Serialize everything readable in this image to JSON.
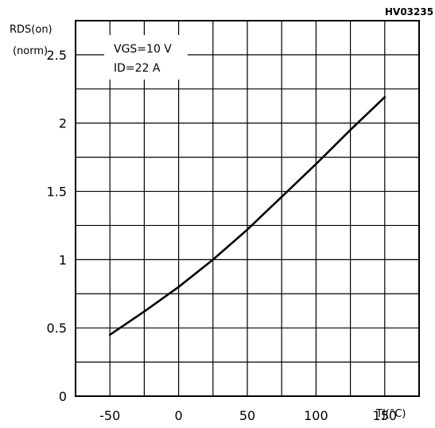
{
  "figure_code": "HV03235",
  "conditions": [
    "VGS=10 V",
    "ID=22 A"
  ],
  "chart_data": {
    "type": "line",
    "xlabel": "TJ(°C)",
    "ylabel": [
      "RDS(on)",
      "(norm)"
    ],
    "xlim": [
      -75,
      175
    ],
    "ylim": [
      0,
      2.75
    ],
    "x_grid_step": 25,
    "y_grid_step": 0.25,
    "grid": true,
    "x_ticks": [
      -50,
      0,
      50,
      100,
      150
    ],
    "x_tick_labels": [
      "-50",
      "0",
      "50",
      "100",
      "150"
    ],
    "y_ticks": [
      0,
      0.5,
      1,
      1.5,
      2,
      2.5
    ],
    "y_tick_labels": [
      "0",
      "0.5",
      "1",
      "1.5",
      "2",
      "2.5"
    ],
    "series": [
      {
        "x": [
          -50,
          -25,
          0,
          25,
          50,
          75,
          100,
          125,
          150
        ],
        "values": [
          0.45,
          0.62,
          0.8,
          1.0,
          1.22,
          1.46,
          1.7,
          1.95,
          2.19
        ]
      }
    ]
  }
}
